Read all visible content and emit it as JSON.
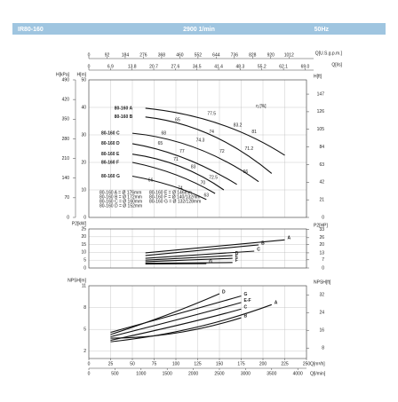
{
  "header": {
    "model": "IR80-160",
    "speed": "2900 1/min",
    "freq": "50Hz"
  },
  "chart_data": [
    {
      "type": "line",
      "eta_label": "η [%]",
      "xlim": [
        0,
        250
      ],
      "ylim": [
        0,
        50
      ],
      "ylabel": "H[m]",
      "yticks": [
        0,
        10,
        20,
        30,
        40,
        50
      ],
      "kpa": {
        "label": "H[kPa]",
        "lim": [
          0,
          490
        ],
        "ticks": [
          0,
          70,
          140,
          210,
          280,
          350,
          420,
          490
        ]
      },
      "y2label": "H[ft]",
      "y2lim": [
        0,
        164
      ],
      "y2ticks": [
        0,
        21,
        42,
        63,
        84,
        105,
        126,
        147
      ],
      "gpm": {
        "label": "Q[U.S.g.p.m.]",
        "lim": [
          0,
          1100.7
        ],
        "ticks": [
          0,
          92,
          184,
          276,
          368,
          460,
          552,
          644,
          736,
          828,
          920,
          1012
        ]
      },
      "ls": {
        "label": "Q[l/s]",
        "lim": [
          0,
          69.44
        ],
        "ticks": [
          0,
          6.9,
          13.8,
          20.7,
          27.6,
          34.5,
          41.4,
          48.3,
          55.2,
          62.1,
          {
            "value": 69.0,
            "label": "69.0"
          }
        ]
      },
      "series": [
        {
          "name": "80-160 A",
          "q": [
            65,
            150,
            225
          ],
          "values": [
            39.7,
            34,
            22.6
          ]
        },
        {
          "name": "80-160 B",
          "q": [
            65,
            140,
            210
          ],
          "values": [
            36.5,
            30,
            16
          ]
        },
        {
          "name": "80-160 C",
          "q": [
            50,
            125,
            195
          ],
          "values": [
            30.6,
            25,
            13
          ]
        },
        {
          "name": "80-160 D",
          "q": [
            50,
            110,
            170
          ],
          "values": [
            26.8,
            21.5,
            12
          ]
        },
        {
          "name": "80-160 E",
          "q": [
            50,
            105,
            155
          ],
          "values": [
            23,
            18.5,
            10
          ]
        },
        {
          "name": "80-160 F",
          "q": [
            50,
            100,
            145
          ],
          "values": [
            20,
            15.5,
            8.7
          ]
        },
        {
          "name": "80-160 G",
          "q": [
            50,
            95,
            135
          ],
          "values": [
            15,
            11.5,
            6.5
          ]
        }
      ],
      "legend": [
        "80-160 A = Ø 176mm",
        "80-160 B = Ø 172mm",
        "80-160 C = Ø 160mm",
        "80-160 D = Ø 152mm",
        "80-160 E = Ø 146mm",
        "80-160 F = Ø 140/132mm",
        "80-160 G = Ø 132/128mm"
      ],
      "efficiency": [
        {
          "value": 65,
          "x": 102,
          "y": 35.5
        },
        {
          "value": 77.5,
          "x": 141,
          "y": 37.7
        },
        {
          "value": 83.2,
          "x": 171,
          "y": 33.5
        },
        {
          "value": 81,
          "x": 190,
          "y": 31
        },
        {
          "value": 68,
          "x": 86,
          "y": 30.6
        },
        {
          "value": 74,
          "x": 141,
          "y": 31
        },
        {
          "value": 65,
          "x": 82,
          "y": 26.8
        },
        {
          "value": 74.3,
          "x": 128,
          "y": 28
        },
        {
          "value": 71.2,
          "x": 184,
          "y": 25
        },
        {
          "value": 77,
          "x": 107,
          "y": 24
        },
        {
          "value": 72,
          "x": 153,
          "y": 24
        },
        {
          "value": 71,
          "x": 100,
          "y": 21
        },
        {
          "value": 83,
          "x": 120,
          "y": 18.4
        },
        {
          "value": 66,
          "x": 180,
          "y": 16.5
        },
        {
          "value": 72.5,
          "x": 143,
          "y": 14.5
        },
        {
          "value": 70,
          "x": 131,
          "y": 12.6
        },
        {
          "value": 66,
          "x": 71,
          "y": 13.5
        },
        {
          "value": 74,
          "x": 105,
          "y": 10.6
        },
        {
          "value": 63,
          "x": 135,
          "y": 8
        }
      ]
    },
    {
      "type": "line",
      "xlim": [
        0,
        250
      ],
      "ylim": [
        0,
        25
      ],
      "ylabel": "P2[kW]",
      "yticks": [
        0,
        5,
        10,
        15,
        20,
        25
      ],
      "y2label": "P2[HP]",
      "y2lim": [
        0,
        33.5
      ],
      "y2ticks": [
        0,
        7,
        13,
        20,
        26,
        33
      ],
      "series": [
        {
          "name": "A",
          "q": [
            65,
            225
          ],
          "values": [
            9.7,
            18
          ]
        },
        {
          "name": "B",
          "q": [
            65,
            195
          ],
          "values": [
            8,
            14.8
          ]
        },
        {
          "name": "C",
          "q": [
            65,
            190
          ],
          "values": [
            6.2,
            10.8
          ]
        },
        {
          "name": "D",
          "q": [
            65,
            165
          ],
          "values": [
            5,
            8
          ]
        },
        {
          "name": "E",
          "q": [
            65,
            165
          ],
          "values": [
            4,
            6.2
          ]
        },
        {
          "name": "F",
          "q": [
            65,
            165
          ],
          "values": [
            3,
            3.5
          ]
        },
        {
          "name": "G",
          "q": [
            65,
            135
          ],
          "values": [
            2.6,
            2.8
          ]
        }
      ]
    },
    {
      "type": "line",
      "xlim": [
        0,
        250
      ],
      "ylim": [
        1,
        11
      ],
      "ylabel": "NPSH[m]",
      "yticks": [
        2,
        5,
        8,
        11
      ],
      "y2label": "NPSH[ft]",
      "y2lim": [
        3.28,
        36.09
      ],
      "y2ticks": [
        8,
        16,
        24,
        32
      ],
      "xlabel": "Q[m³/h]",
      "xticks": [
        0,
        25,
        50,
        75,
        100,
        125,
        150,
        175,
        200,
        225,
        250
      ],
      "lmin": {
        "label": "Q[l/min]",
        "lim": [
          0,
          4166.7
        ],
        "ticks": [
          0,
          500,
          1000,
          1500,
          2000,
          2500,
          3000,
          3500,
          4000
        ]
      },
      "series": [
        {
          "name": "A",
          "q": [
            25,
            120,
            210
          ],
          "values": [
            3.3,
            5.2,
            8.4
          ]
        },
        {
          "name": "B",
          "q": [
            25,
            100,
            175
          ],
          "values": [
            3.8,
            4.5,
            6.6
          ]
        },
        {
          "name": "C",
          "q": [
            25,
            110,
            175
          ],
          "values": [
            3.5,
            5.8,
            7.8
          ]
        },
        {
          "name": "D",
          "q": [
            25,
            90,
            150
          ],
          "values": [
            4.3,
            7,
            9.9
          ]
        },
        {
          "name": "E-F",
          "q": [
            25,
            110,
            175
          ],
          "values": [
            4,
            6.6,
            8.7
          ]
        },
        {
          "name": "G",
          "q": [
            25,
            110,
            175
          ],
          "values": [
            4.6,
            7.4,
            9.6
          ]
        }
      ]
    }
  ]
}
